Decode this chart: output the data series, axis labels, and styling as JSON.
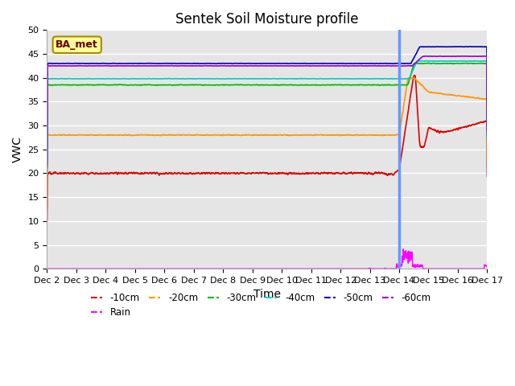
{
  "title": "Sentek Soil Moisture profile",
  "xlabel": "Time",
  "ylabel": "VWC",
  "legend_label": "BA_met",
  "ylim": [
    0,
    50
  ],
  "x_tick_labels": [
    "Dec 2",
    "Dec 3",
    "Dec 4",
    "Dec 5",
    "Dec 6",
    "Dec 7",
    "Dec 8",
    "Dec 9",
    "Dec 10",
    "Dec 11",
    "Dec 12",
    "Dec 13",
    "Dec 14",
    "Dec 15",
    "Dec 16",
    "Dec 17"
  ],
  "series": {
    "-10cm": {
      "color": "#dd0000",
      "base": 20.0,
      "noise": 0.25
    },
    "-20cm": {
      "color": "#ff9900",
      "base": 28.0,
      "noise": 0.12
    },
    "-30cm": {
      "color": "#00bb00",
      "base": 38.5,
      "noise": 0.08
    },
    "-40cm": {
      "color": "#00cccc",
      "base": 39.8,
      "noise": 0.06
    },
    "-50cm": {
      "color": "#0000cc",
      "base": 43.0,
      "noise": 0.05
    },
    "-60cm": {
      "color": "#9900cc",
      "base": 42.5,
      "noise": 0.05
    }
  },
  "vline_day": 12.0,
  "vline_color": "#6699ff",
  "rain_color": "#ff00ff",
  "background_color": "#e5e5e5",
  "grid_color": "#ffffff",
  "title_fontsize": 12,
  "tick_fontsize": 8,
  "label_fontsize": 10
}
